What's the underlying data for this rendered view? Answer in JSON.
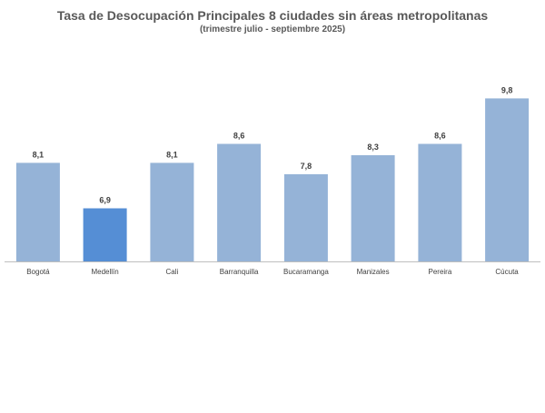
{
  "chart_data": {
    "type": "bar",
    "title": "Tasa de Desocupación Principales 8 ciudades sin áreas metropolitanas",
    "subtitle": "(trimestre  julio - septiembre 2025)",
    "categories": [
      "Bogotá",
      "Medellín",
      "Cali",
      "Barranquilla",
      "Bucaramanga",
      "Manizales",
      "Pereira",
      "Cúcuta"
    ],
    "values": [
      8.1,
      6.9,
      8.1,
      8.6,
      7.8,
      8.3,
      8.6,
      9.8
    ],
    "data_labels": [
      "8,1",
      "6,9",
      "8,1",
      "8,6",
      "7,8",
      "8,3",
      "8,6",
      "9,8"
    ],
    "ylim": [
      5.5,
      10.0
    ],
    "grid": false,
    "legend": "none",
    "colors": {
      "bar": "#95b3d7",
      "highlight_bar": "#558ed5",
      "label": "#404040",
      "title": "#595959",
      "axis": "#bfbfbf"
    },
    "highlight_index": 1
  }
}
